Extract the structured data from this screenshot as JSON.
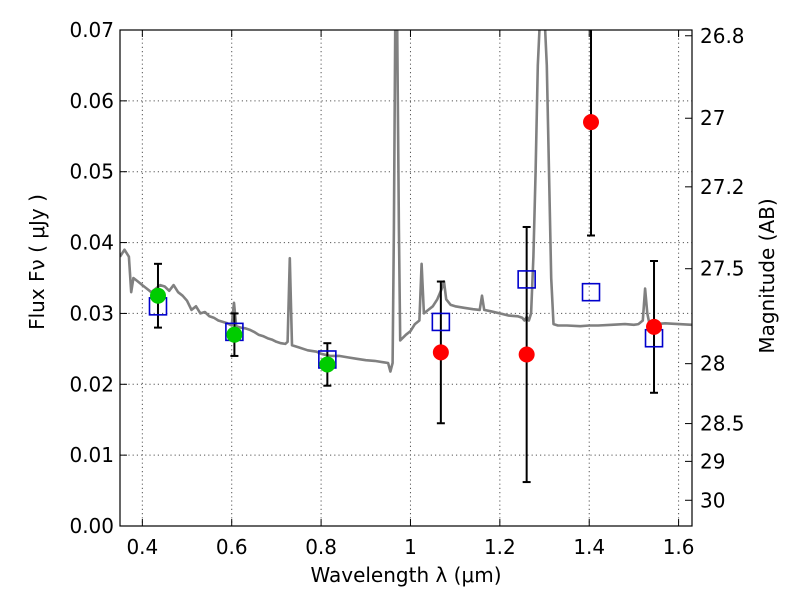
{
  "chart_data": {
    "type": "scatter",
    "xlabel": "Wavelength  λ (μm)",
    "ylabel": "Flux  Fν  ( μJy )",
    "ylabel_right": "Magnitude (AB)",
    "xlim": [
      0.35,
      1.63
    ],
    "ylim": [
      0.0,
      0.07
    ],
    "x_ticks": [
      0.4,
      0.6,
      0.8,
      1.0,
      1.2,
      1.4,
      1.6
    ],
    "x_tick_labels": [
      "0.4",
      "0.6",
      "0.8",
      "1",
      "1.2",
      "1.4",
      "1.6"
    ],
    "y_ticks": [
      0.0,
      0.01,
      0.02,
      0.03,
      0.04,
      0.05,
      0.06,
      0.07
    ],
    "y_tick_labels": [
      "0.00",
      "0.01",
      "0.02",
      "0.03",
      "0.04",
      "0.05",
      "0.06",
      "0.07"
    ],
    "right_ticks": [
      {
        "label": "26.8",
        "mag": 26.8
      },
      {
        "label": "27",
        "mag": 27.0
      },
      {
        "label": "27.2",
        "mag": 27.2
      },
      {
        "label": "27.5",
        "mag": 27.5
      },
      {
        "label": "28",
        "mag": 28.0
      },
      {
        "label": "28.5",
        "mag": 28.5
      },
      {
        "label": "29",
        "mag": 29.0
      },
      {
        "label": "30",
        "mag": 30.0
      }
    ],
    "grid": true,
    "colors": {
      "sed": "#808080",
      "observed_fit": "#00cc00",
      "observed_other": "#ff0000",
      "model": "#0000cc",
      "errorbar": "#000000"
    },
    "series": [
      {
        "marker": "square-open",
        "points": [
          {
            "x": 0.435,
            "y": 0.031
          },
          {
            "x": 0.606,
            "y": 0.0274
          },
          {
            "x": 0.814,
            "y": 0.0235
          },
          {
            "x": 1.068,
            "y": 0.0288
          },
          {
            "x": 1.26,
            "y": 0.0348
          },
          {
            "x": 1.404,
            "y": 0.033
          },
          {
            "x": 1.545,
            "y": 0.0265
          }
        ]
      },
      {
        "marker": "circle-green",
        "points": [
          {
            "x": 0.435,
            "y": 0.0325,
            "err_low": 0.0045,
            "err_high": 0.0045
          },
          {
            "x": 0.606,
            "y": 0.027,
            "err_low": 0.003,
            "err_high": 0.003
          },
          {
            "x": 0.814,
            "y": 0.0228,
            "err_low": 0.003,
            "err_high": 0.003
          }
        ]
      },
      {
        "marker": "circle-red",
        "points": [
          {
            "x": 1.068,
            "y": 0.0245,
            "err_low": 0.01,
            "err_high": 0.01
          },
          {
            "x": 1.26,
            "y": 0.0242,
            "err_low": 0.018,
            "err_high": 0.018
          },
          {
            "x": 1.404,
            "y": 0.057,
            "err_low": 0.016,
            "err_high": 0.016
          },
          {
            "x": 1.545,
            "y": 0.0281,
            "err_low": 0.0093,
            "err_high": 0.0093
          }
        ]
      },
      {
        "marker": "line",
        "points": [
          [
            0.35,
            0.038
          ],
          [
            0.36,
            0.039
          ],
          [
            0.37,
            0.038
          ],
          [
            0.375,
            0.033
          ],
          [
            0.38,
            0.035
          ],
          [
            0.39,
            0.0345
          ],
          [
            0.4,
            0.034
          ],
          [
            0.41,
            0.0335
          ],
          [
            0.42,
            0.033
          ],
          [
            0.43,
            0.0335
          ],
          [
            0.44,
            0.034
          ],
          [
            0.45,
            0.0338
          ],
          [
            0.46,
            0.0332
          ],
          [
            0.47,
            0.034
          ],
          [
            0.48,
            0.033
          ],
          [
            0.49,
            0.0325
          ],
          [
            0.5,
            0.0318
          ],
          [
            0.51,
            0.0305
          ],
          [
            0.52,
            0.031
          ],
          [
            0.53,
            0.03
          ],
          [
            0.54,
            0.0302
          ],
          [
            0.55,
            0.0296
          ],
          [
            0.56,
            0.0294
          ],
          [
            0.57,
            0.029
          ],
          [
            0.58,
            0.0288
          ],
          [
            0.59,
            0.0286
          ],
          [
            0.6,
            0.0283
          ],
          [
            0.605,
            0.0315
          ],
          [
            0.61,
            0.0282
          ],
          [
            0.62,
            0.028
          ],
          [
            0.63,
            0.0279
          ],
          [
            0.64,
            0.0277
          ],
          [
            0.65,
            0.0274
          ],
          [
            0.66,
            0.027
          ],
          [
            0.67,
            0.0268
          ],
          [
            0.68,
            0.0265
          ],
          [
            0.69,
            0.0263
          ],
          [
            0.7,
            0.026
          ],
          [
            0.71,
            0.0258
          ],
          [
            0.72,
            0.0257
          ],
          [
            0.725,
            0.026
          ],
          [
            0.73,
            0.0378
          ],
          [
            0.735,
            0.0255
          ],
          [
            0.75,
            0.0252
          ],
          [
            0.77,
            0.0248
          ],
          [
            0.79,
            0.0246
          ],
          [
            0.8,
            0.0243
          ],
          [
            0.82,
            0.024
          ],
          [
            0.84,
            0.024
          ],
          [
            0.86,
            0.0238
          ],
          [
            0.88,
            0.0236
          ],
          [
            0.9,
            0.0234
          ],
          [
            0.92,
            0.0233
          ],
          [
            0.94,
            0.0231
          ],
          [
            0.95,
            0.023
          ],
          [
            0.955,
            0.0218
          ],
          [
            0.96,
            0.023
          ],
          [
            0.963,
            0.042
          ],
          [
            0.966,
            0.072
          ],
          [
            0.97,
            0.072
          ],
          [
            0.974,
            0.042
          ],
          [
            0.977,
            0.0262
          ],
          [
            0.99,
            0.027
          ],
          [
            1.0,
            0.0275
          ],
          [
            1.01,
            0.0285
          ],
          [
            1.02,
            0.029
          ],
          [
            1.025,
            0.037
          ],
          [
            1.03,
            0.03
          ],
          [
            1.04,
            0.0305
          ],
          [
            1.05,
            0.031
          ],
          [
            1.06,
            0.032
          ],
          [
            1.07,
            0.0335
          ],
          [
            1.075,
            0.0345
          ],
          [
            1.08,
            0.032
          ],
          [
            1.09,
            0.0312
          ],
          [
            1.1,
            0.031
          ],
          [
            1.12,
            0.0308
          ],
          [
            1.14,
            0.0306
          ],
          [
            1.155,
            0.0305
          ],
          [
            1.16,
            0.0325
          ],
          [
            1.165,
            0.0305
          ],
          [
            1.18,
            0.0303
          ],
          [
            1.2,
            0.03
          ],
          [
            1.22,
            0.0297
          ],
          [
            1.24,
            0.0296
          ],
          [
            1.25,
            0.0294
          ],
          [
            1.255,
            0.029
          ],
          [
            1.26,
            0.0295
          ],
          [
            1.265,
            0.029
          ],
          [
            1.27,
            0.03
          ],
          [
            1.275,
            0.038
          ],
          [
            1.28,
            0.05
          ],
          [
            1.285,
            0.065
          ],
          [
            1.29,
            0.072
          ],
          [
            1.3,
            0.072
          ],
          [
            1.305,
            0.065
          ],
          [
            1.31,
            0.05
          ],
          [
            1.315,
            0.035
          ],
          [
            1.32,
            0.0285
          ],
          [
            1.33,
            0.0283
          ],
          [
            1.35,
            0.0283
          ],
          [
            1.38,
            0.0282
          ],
          [
            1.4,
            0.0283
          ],
          [
            1.42,
            0.0283
          ],
          [
            1.45,
            0.0284
          ],
          [
            1.48,
            0.0285
          ],
          [
            1.5,
            0.0284
          ],
          [
            1.51,
            0.0285
          ],
          [
            1.52,
            0.029
          ],
          [
            1.525,
            0.0335
          ],
          [
            1.53,
            0.03
          ],
          [
            1.535,
            0.0285
          ],
          [
            1.55,
            0.0285
          ],
          [
            1.57,
            0.0286
          ],
          [
            1.6,
            0.0285
          ],
          [
            1.63,
            0.0284
          ]
        ]
      }
    ]
  }
}
